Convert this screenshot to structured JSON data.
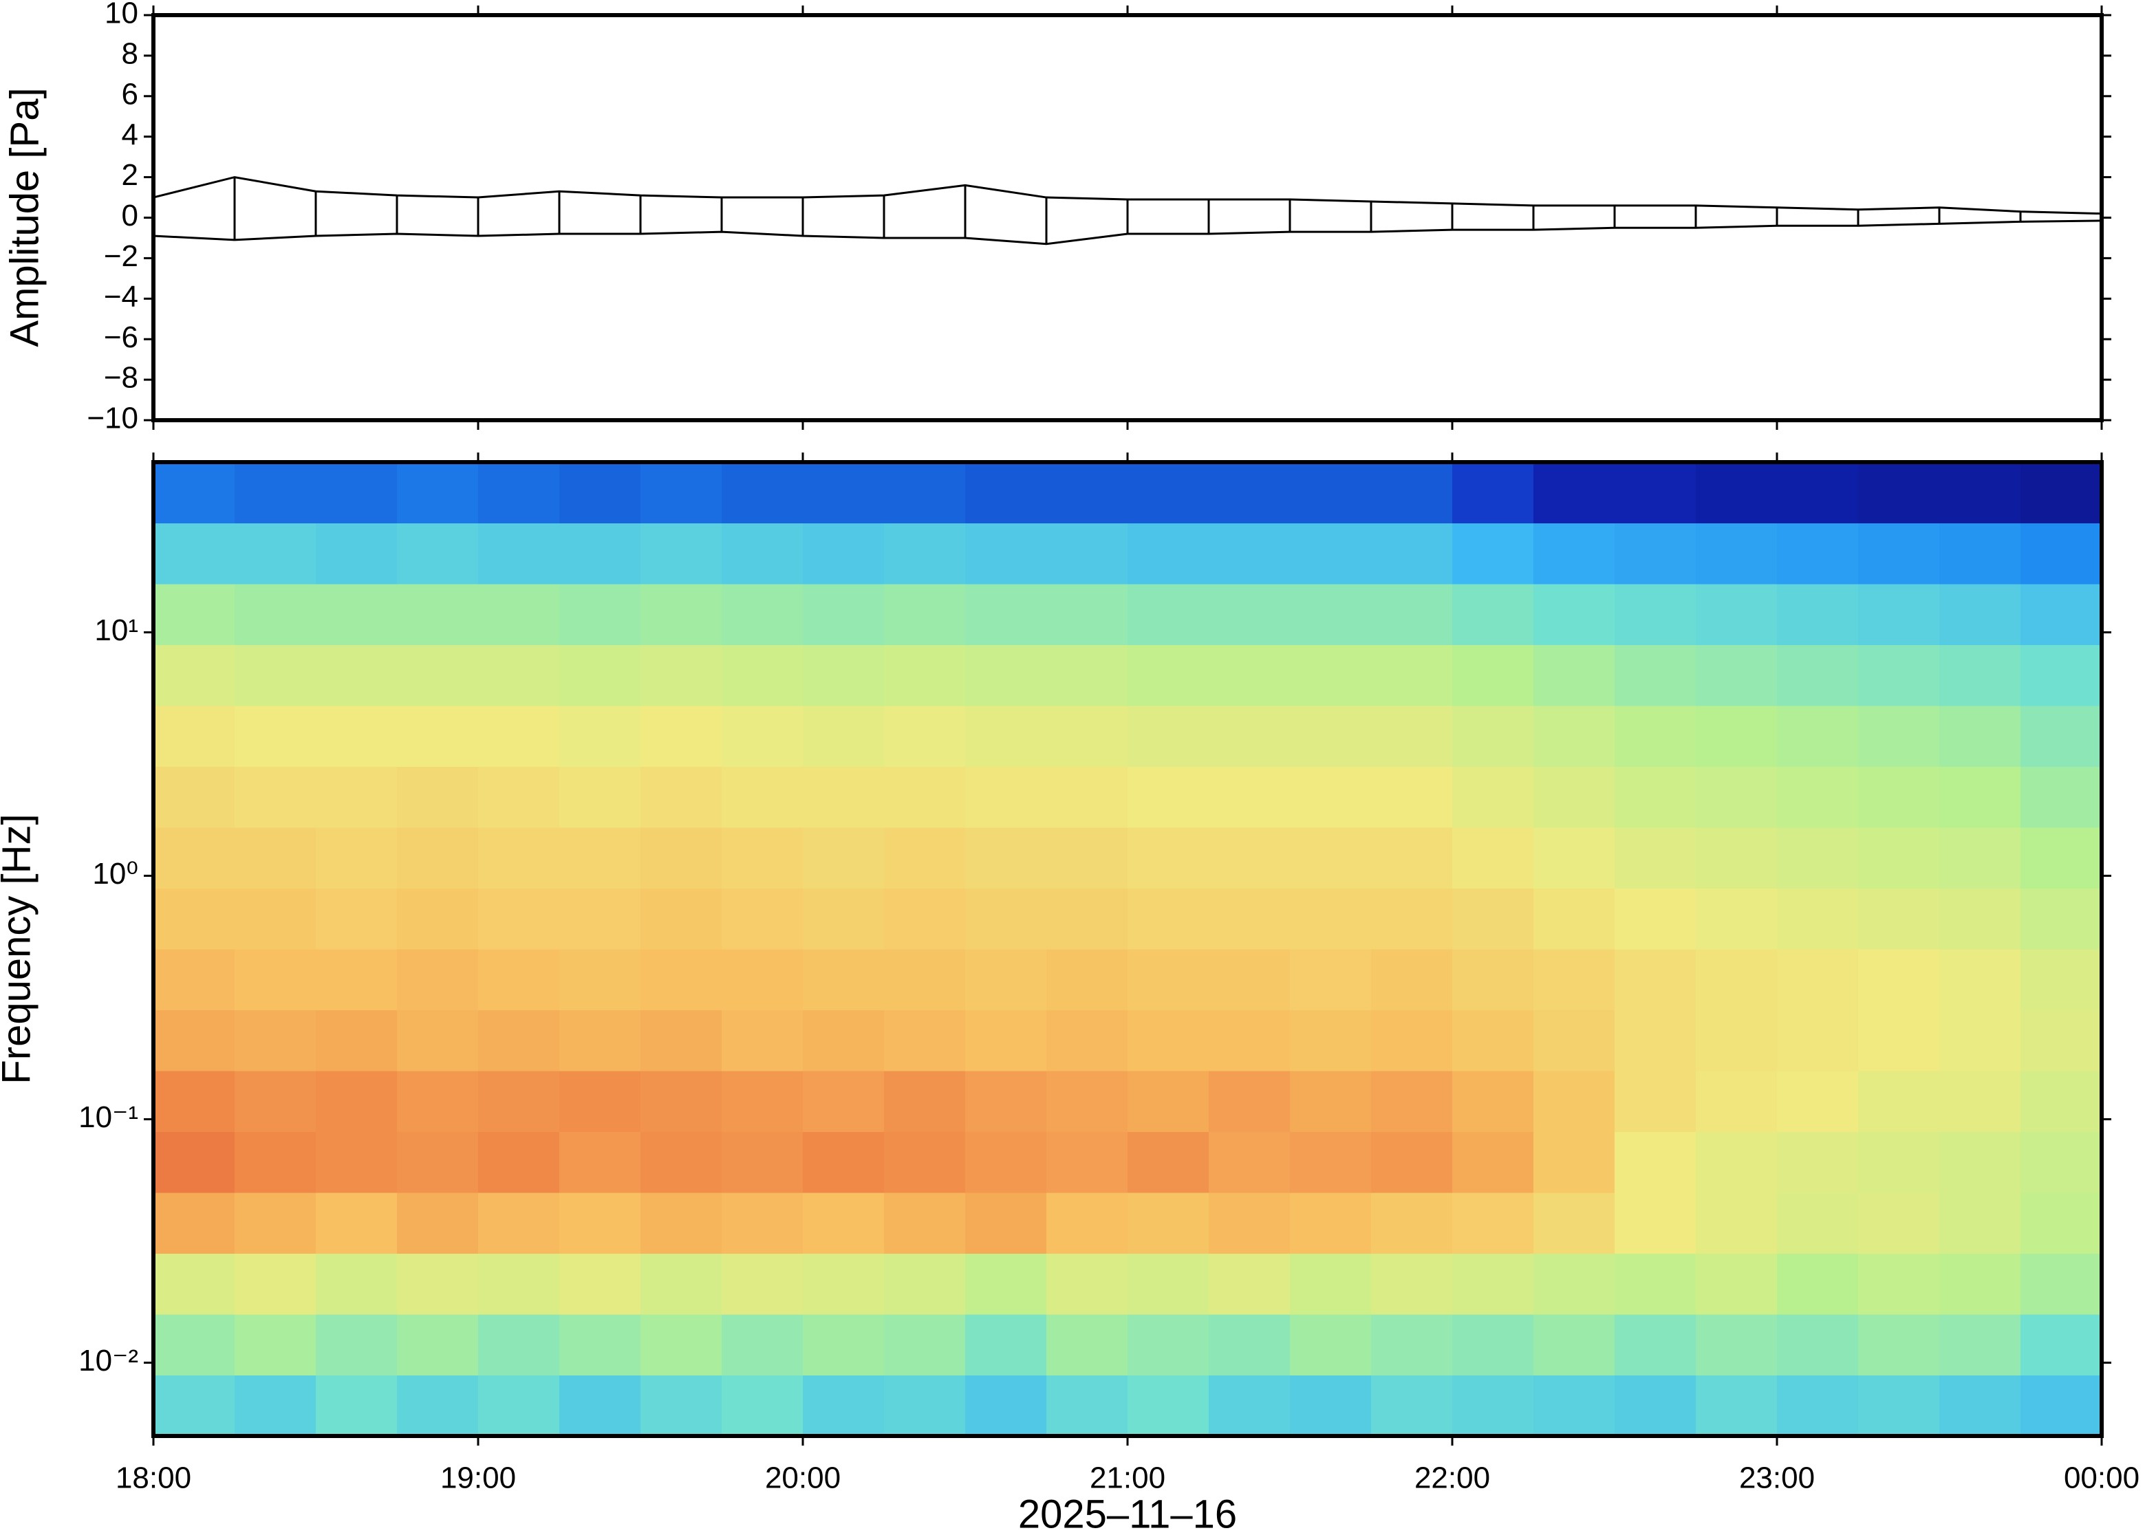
{
  "chart_data": [
    {
      "type": "line",
      "ylabel": "Amplitude [Pa]",
      "x": [
        18,
        18.25,
        18.5,
        18.75,
        19,
        19.25,
        19.5,
        19.75,
        20,
        20.25,
        20.5,
        20.75,
        21,
        21.25,
        21.5,
        21.75,
        22,
        22.25,
        22.5,
        22.75,
        23,
        23.25,
        23.5,
        23.75,
        24
      ],
      "series": [
        {
          "name": "max",
          "color": "#000000",
          "values": [
            1.0,
            2.0,
            1.3,
            1.1,
            1.0,
            1.3,
            1.1,
            1.0,
            1.0,
            1.1,
            1.6,
            1.0,
            0.9,
            0.9,
            0.9,
            0.8,
            0.7,
            0.6,
            0.6,
            0.6,
            0.5,
            0.4,
            0.5,
            0.3,
            0.2
          ]
        },
        {
          "name": "min",
          "color": "#000000",
          "values": [
            -0.9,
            -1.1,
            -0.9,
            -0.8,
            -0.9,
            -0.8,
            -0.8,
            -0.7,
            -0.9,
            -1.0,
            -1.0,
            -1.3,
            -0.8,
            -0.8,
            -0.7,
            -0.7,
            -0.6,
            -0.6,
            -0.5,
            -0.5,
            -0.4,
            -0.4,
            -0.3,
            -0.2,
            -0.15
          ]
        }
      ],
      "xlim": [
        18,
        24
      ],
      "xticks": [
        18,
        19,
        20,
        21,
        22,
        23,
        24
      ],
      "ylim": [
        -10,
        10
      ],
      "yticks": [
        {
          "value": -10,
          "label": "−10"
        },
        {
          "value": -8,
          "label": "−8"
        },
        {
          "value": -6,
          "label": "−6"
        },
        {
          "value": -4,
          "label": "−4"
        },
        {
          "value": -2,
          "label": "−2"
        },
        0,
        2,
        4,
        6,
        8,
        10
      ]
    },
    {
      "type": "heatmap",
      "ylabel": "Frequency [Hz]",
      "xlabel": "2025–11–16",
      "log_y": true,
      "xlim": [
        18,
        24
      ],
      "xticks": [
        {
          "value": 18,
          "label": "18:00"
        },
        {
          "value": 19,
          "label": "19:00"
        },
        {
          "value": 20,
          "label": "20:00"
        },
        {
          "value": 21,
          "label": "21:00"
        },
        {
          "value": 22,
          "label": "22:00"
        },
        {
          "value": 23,
          "label": "23:00"
        },
        {
          "value": 24,
          "label": "00:00"
        }
      ],
      "ylim": [
        0.005,
        50
      ],
      "yticks": [
        {
          "value": 0.01,
          "label": "10⁻²"
        },
        {
          "value": 0.1,
          "label": "10⁻¹"
        },
        {
          "value": 1,
          "label": "10⁰"
        },
        {
          "value": 10,
          "label": "10¹"
        }
      ],
      "x_edges": [
        18,
        18.25,
        18.5,
        18.75,
        19,
        19.25,
        19.5,
        19.75,
        20,
        20.25,
        20.5,
        20.75,
        21,
        21.25,
        21.5,
        21.75,
        22,
        22.25,
        22.5,
        22.75,
        23,
        23.25,
        23.5,
        23.75,
        24
      ],
      "y_edges": [
        0.005,
        0.0089,
        0.0158,
        0.0281,
        0.05,
        0.089,
        0.158,
        0.281,
        0.5,
        0.89,
        1.58,
        2.81,
        5,
        8.9,
        15.8,
        28.1,
        50
      ],
      "zlim": [
        0,
        1
      ],
      "colormap": [
        "#0a0a6e",
        "#1028c0",
        "#1e8cf0",
        "#3cb8f5",
        "#70e0d0",
        "#b8f090",
        "#f0ea80",
        "#f8c060",
        "#f08848",
        "#d84828",
        "#a01810"
      ],
      "z": [
        [
          0.38,
          0.36,
          0.4,
          0.37,
          0.39,
          0.35,
          0.38,
          0.4,
          0.36,
          0.37,
          0.34,
          0.38,
          0.4,
          0.36,
          0.35,
          0.38,
          0.37,
          0.36,
          0.35,
          0.38,
          0.36,
          0.37,
          0.35,
          0.33
        ],
        [
          0.46,
          0.48,
          0.45,
          0.47,
          0.44,
          0.46,
          0.48,
          0.45,
          0.47,
          0.46,
          0.42,
          0.47,
          0.45,
          0.44,
          0.47,
          0.45,
          0.44,
          0.46,
          0.43,
          0.45,
          0.44,
          0.46,
          0.45,
          0.4
        ],
        [
          0.56,
          0.58,
          0.55,
          0.57,
          0.56,
          0.58,
          0.55,
          0.57,
          0.56,
          0.55,
          0.52,
          0.56,
          0.55,
          0.57,
          0.54,
          0.56,
          0.55,
          0.53,
          0.52,
          0.54,
          0.5,
          0.52,
          0.51,
          0.48
        ],
        [
          0.74,
          0.72,
          0.7,
          0.73,
          0.71,
          0.7,
          0.72,
          0.71,
          0.7,
          0.72,
          0.74,
          0.7,
          0.69,
          0.71,
          0.7,
          0.68,
          0.67,
          0.64,
          0.6,
          0.58,
          0.56,
          0.57,
          0.55,
          0.52
        ],
        [
          0.82,
          0.8,
          0.79,
          0.78,
          0.8,
          0.77,
          0.79,
          0.78,
          0.8,
          0.79,
          0.77,
          0.76,
          0.78,
          0.75,
          0.76,
          0.77,
          0.74,
          0.68,
          0.6,
          0.58,
          0.57,
          0.56,
          0.55,
          0.53
        ],
        [
          0.8,
          0.78,
          0.79,
          0.77,
          0.78,
          0.79,
          0.78,
          0.77,
          0.76,
          0.78,
          0.76,
          0.75,
          0.74,
          0.76,
          0.74,
          0.75,
          0.72,
          0.68,
          0.63,
          0.61,
          0.6,
          0.58,
          0.58,
          0.55
        ],
        [
          0.74,
          0.73,
          0.74,
          0.72,
          0.73,
          0.72,
          0.73,
          0.71,
          0.72,
          0.71,
          0.7,
          0.71,
          0.7,
          0.7,
          0.69,
          0.7,
          0.68,
          0.66,
          0.63,
          0.62,
          0.61,
          0.6,
          0.59,
          0.57
        ],
        [
          0.71,
          0.7,
          0.7,
          0.71,
          0.7,
          0.69,
          0.7,
          0.7,
          0.69,
          0.69,
          0.68,
          0.69,
          0.68,
          0.68,
          0.67,
          0.68,
          0.66,
          0.65,
          0.63,
          0.62,
          0.61,
          0.6,
          0.59,
          0.56
        ],
        [
          0.68,
          0.68,
          0.67,
          0.68,
          0.67,
          0.67,
          0.68,
          0.67,
          0.66,
          0.67,
          0.66,
          0.66,
          0.65,
          0.65,
          0.65,
          0.65,
          0.64,
          0.62,
          0.6,
          0.59,
          0.58,
          0.57,
          0.56,
          0.53
        ],
        [
          0.66,
          0.66,
          0.65,
          0.66,
          0.65,
          0.65,
          0.66,
          0.65,
          0.64,
          0.65,
          0.64,
          0.64,
          0.63,
          0.63,
          0.63,
          0.63,
          0.61,
          0.59,
          0.57,
          0.56,
          0.55,
          0.54,
          0.53,
          0.5
        ],
        [
          0.64,
          0.63,
          0.63,
          0.64,
          0.63,
          0.62,
          0.63,
          0.62,
          0.62,
          0.62,
          0.61,
          0.61,
          0.6,
          0.6,
          0.6,
          0.6,
          0.58,
          0.56,
          0.54,
          0.53,
          0.52,
          0.51,
          0.5,
          0.47
        ],
        [
          0.61,
          0.6,
          0.6,
          0.6,
          0.6,
          0.59,
          0.6,
          0.59,
          0.58,
          0.59,
          0.58,
          0.58,
          0.57,
          0.57,
          0.57,
          0.57,
          0.55,
          0.53,
          0.51,
          0.5,
          0.49,
          0.48,
          0.47,
          0.44
        ],
        [
          0.56,
          0.55,
          0.55,
          0.55,
          0.55,
          0.54,
          0.55,
          0.54,
          0.53,
          0.54,
          0.53,
          0.53,
          0.52,
          0.52,
          0.52,
          0.52,
          0.5,
          0.48,
          0.46,
          0.45,
          0.44,
          0.43,
          0.42,
          0.4
        ],
        [
          0.48,
          0.47,
          0.47,
          0.47,
          0.47,
          0.46,
          0.47,
          0.46,
          0.45,
          0.46,
          0.45,
          0.45,
          0.44,
          0.44,
          0.44,
          0.44,
          0.42,
          0.4,
          0.39,
          0.38,
          0.37,
          0.36,
          0.35,
          0.33
        ],
        [
          0.36,
          0.36,
          0.35,
          0.36,
          0.35,
          0.35,
          0.36,
          0.35,
          0.34,
          0.35,
          0.34,
          0.34,
          0.33,
          0.33,
          0.33,
          0.33,
          0.3,
          0.27,
          0.26,
          0.25,
          0.24,
          0.23,
          0.22,
          0.2
        ],
        [
          0.18,
          0.17,
          0.17,
          0.18,
          0.17,
          0.16,
          0.17,
          0.16,
          0.16,
          0.16,
          0.15,
          0.15,
          0.15,
          0.15,
          0.15,
          0.15,
          0.12,
          0.08,
          0.08,
          0.07,
          0.07,
          0.06,
          0.06,
          0.05
        ]
      ]
    }
  ]
}
